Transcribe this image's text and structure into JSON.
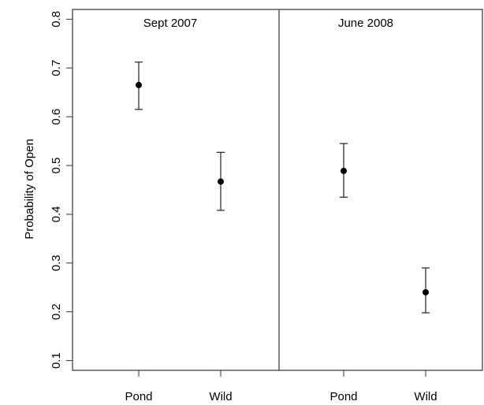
{
  "chart_data": {
    "type": "scatter",
    "ylabel": "Probability of Open",
    "ylim": [
      0.08,
      0.82
    ],
    "yticks": [
      "0.1",
      "0.2",
      "0.3",
      "0.4",
      "0.5",
      "0.6",
      "0.7",
      "0.8"
    ],
    "grid": false,
    "panels": [
      {
        "title": "Sept 2007",
        "categories": [
          "Pond",
          "Wild"
        ],
        "values": [
          0.665,
          0.467
        ],
        "lower": [
          0.615,
          0.408
        ],
        "upper": [
          0.712,
          0.527
        ]
      },
      {
        "title": "June 2008",
        "categories": [
          "Pond",
          "Wild"
        ],
        "values": [
          0.489,
          0.24
        ],
        "lower": [
          0.435,
          0.198
        ],
        "upper": [
          0.545,
          0.29
        ]
      }
    ]
  }
}
